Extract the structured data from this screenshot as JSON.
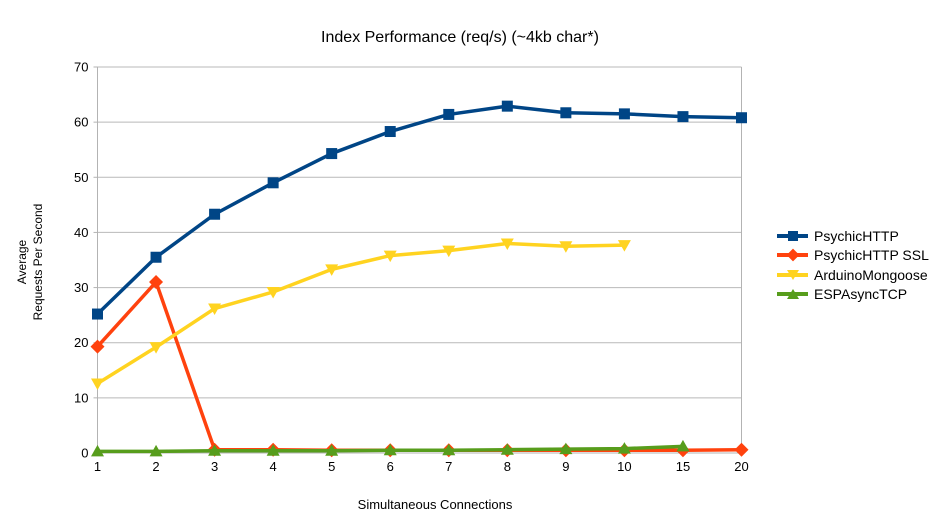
{
  "chart_data": {
    "type": "line",
    "title": "Index Performance (req/s) (~4kb char*)",
    "xlabel": "Simultaneous Connections",
    "ylabel_line1": "Average",
    "ylabel_line2": "Requests Per Second",
    "categories": [
      "1",
      "2",
      "3",
      "4",
      "5",
      "6",
      "7",
      "8",
      "9",
      "10",
      "15",
      "20"
    ],
    "ylim": [
      0,
      70
    ],
    "ytick_step": 10,
    "yticks": [
      0,
      10,
      20,
      30,
      40,
      50,
      60,
      70
    ],
    "grid": "horizontal-major",
    "legend_position": "right",
    "axis_color": "#b3b3b3",
    "grid_color": "#b9b9b9",
    "text_color": "#000000",
    "background_color": "#ffffff",
    "series": [
      {
        "name": "PsychicHTTP",
        "color": "#004586",
        "marker": "square",
        "values": [
          25.2,
          35.5,
          43.3,
          49.0,
          54.3,
          58.3,
          61.4,
          62.9,
          61.7,
          61.5,
          61.0,
          60.8
        ]
      },
      {
        "name": "PsychicHTTP SSL",
        "color": "#FF420E",
        "marker": "diamond",
        "values": [
          19.3,
          31.0,
          0.6,
          0.6,
          0.5,
          0.5,
          0.5,
          0.5,
          0.5,
          0.5,
          0.5,
          0.6
        ]
      },
      {
        "name": "ArduinoMongoose",
        "color": "#FFD320",
        "marker": "triangle-down",
        "values": [
          12.6,
          19.2,
          26.2,
          29.2,
          33.3,
          35.8,
          36.7,
          38.0,
          37.5,
          37.7,
          null,
          null
        ]
      },
      {
        "name": "ESPAsyncTCP",
        "color": "#579D1C",
        "marker": "triangle-up",
        "values": [
          0.3,
          0.3,
          0.4,
          0.4,
          0.4,
          0.5,
          0.5,
          0.6,
          0.7,
          0.8,
          1.2,
          null
        ]
      }
    ]
  }
}
